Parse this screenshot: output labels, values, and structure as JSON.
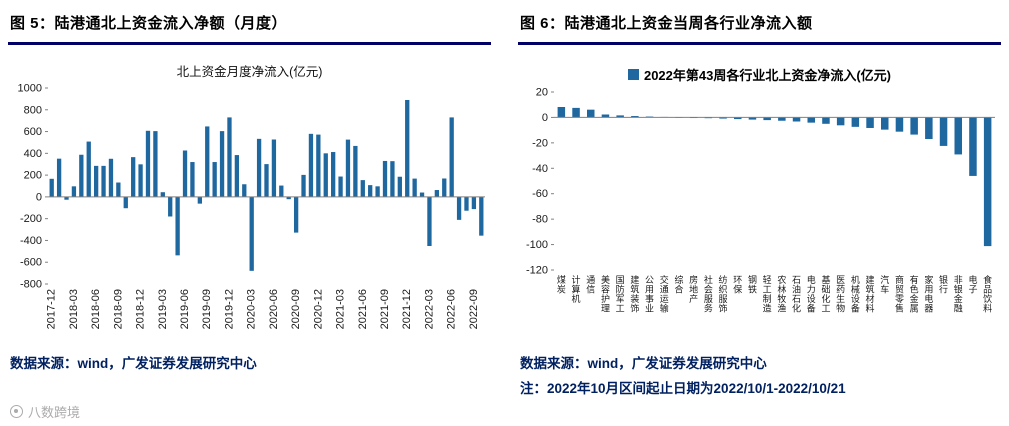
{
  "colors": {
    "bar": "#1F679F",
    "header_underline": "#000066",
    "source_text": "#002060",
    "axis": "#808080",
    "watermark": "#ABABAB"
  },
  "left_panel": {
    "header": "图 5：陆港通北上资金流入净额（月度）",
    "source": "数据来源：wind，广发证券发展研究中心"
  },
  "right_panel": {
    "header": "图 6：陆港通北上资金当周各行业净流入额",
    "source": "数据来源：wind，广发证券发展研究中心",
    "note": "注：2022年10月区间起止日期为2022/10/1-2022/10/21"
  },
  "watermark": {
    "label": "八数跨境"
  },
  "chart_data": [
    {
      "type": "bar",
      "title": "北上资金月度净流入(亿元)",
      "xlabel": "",
      "ylabel": "",
      "ylim": [
        -800,
        1000
      ],
      "ytick_step": 200,
      "grid": false,
      "legend_position": "none",
      "xtick_every": 3,
      "categories": [
        "2017-12",
        "2018-01",
        "2018-02",
        "2018-03",
        "2018-04",
        "2018-05",
        "2018-06",
        "2018-07",
        "2018-08",
        "2018-09",
        "2018-10",
        "2018-11",
        "2018-12",
        "2019-01",
        "2019-02",
        "2019-03",
        "2019-04",
        "2019-05",
        "2019-06",
        "2019-07",
        "2019-08",
        "2019-09",
        "2019-10",
        "2019-11",
        "2019-12",
        "2020-01",
        "2020-02",
        "2020-03",
        "2020-04",
        "2020-05",
        "2020-06",
        "2020-07",
        "2020-08",
        "2020-09",
        "2020-10",
        "2020-11",
        "2020-12",
        "2021-01",
        "2021-02",
        "2021-03",
        "2021-04",
        "2021-05",
        "2021-06",
        "2021-07",
        "2021-08",
        "2021-09",
        "2021-10",
        "2021-11",
        "2021-12",
        "2022-01",
        "2022-02",
        "2022-03",
        "2022-04",
        "2022-05",
        "2022-06",
        "2022-07",
        "2022-08",
        "2022-09",
        "2022-10"
      ],
      "values": [
        166,
        351,
        -26,
        97,
        387,
        508,
        285,
        285,
        350,
        132,
        -104,
        365,
        299,
        607,
        604,
        43,
        -180,
        -537,
        426,
        320,
        -62,
        647,
        320,
        604,
        730,
        384,
        116,
        -679,
        533,
        301,
        527,
        104,
        -21,
        -328,
        202,
        579,
        572,
        400,
        412,
        187,
        526,
        468,
        154,
        108,
        97,
        330,
        328,
        185,
        890,
        168,
        40,
        -451,
        63,
        169,
        730,
        -211,
        -127,
        -112,
        -356
      ]
    },
    {
      "type": "bar",
      "title": "2022年第43周各行业北上资金净流入(亿元)",
      "xlabel": "",
      "ylabel": "",
      "ylim": [
        -120,
        20
      ],
      "ytick_step": 20,
      "grid": false,
      "legend_position": "top",
      "categories": [
        "煤炭",
        "计算机",
        "通信",
        "美容护理",
        "国防军工",
        "建筑装饰",
        "公用事业",
        "交通运输",
        "综合",
        "房地产",
        "社会服务",
        "纺织服饰",
        "环保",
        "钢铁",
        "轻工制造",
        "农林牧渔",
        "石油石化",
        "电力设备",
        "基础化工",
        "医药生物",
        "机械设备",
        "建筑材料",
        "汽车",
        "商贸零售",
        "有色金属",
        "家用电器",
        "银行",
        "非银金融",
        "电子",
        "食品饮料"
      ],
      "values": [
        8.2,
        7.5,
        6.1,
        2.3,
        1.6,
        1.1,
        0.7,
        0.4,
        0.2,
        -0.3,
        -0.6,
        -0.9,
        -1.3,
        -1.7,
        -2.1,
        -2.6,
        -3.2,
        -4.1,
        -5.0,
        -6.2,
        -7.4,
        -8.3,
        -9.6,
        -11.2,
        -13.5,
        -17.0,
        -22.4,
        -29.1,
        -46.0,
        -101.2
      ]
    }
  ]
}
